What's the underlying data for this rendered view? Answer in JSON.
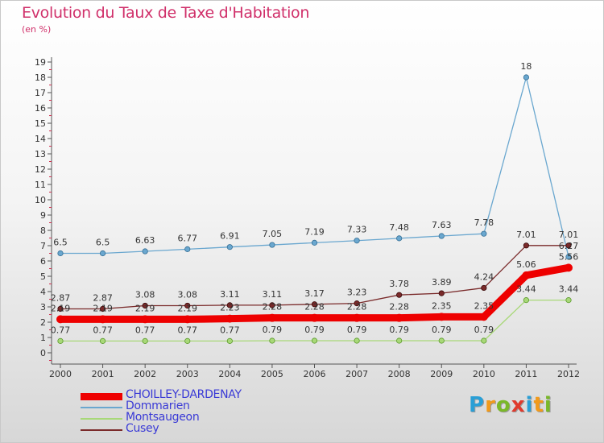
{
  "title": "Evolution du Taux de Taxe d'Habitation",
  "subtitle": "(en %)",
  "logo": {
    "letters": [
      "P",
      "r",
      "o",
      "x",
      "i",
      "t",
      "i"
    ],
    "colors": [
      "#2a9fd6",
      "#f29a1a",
      "#7ab829",
      "#e03a2d",
      "#2a9fd6",
      "#f29a1a",
      "#7ab829"
    ]
  },
  "chart_data": {
    "type": "line",
    "x": [
      "2000",
      "2001",
      "2002",
      "2003",
      "2004",
      "2005",
      "2006",
      "2007",
      "2008",
      "2009",
      "2010",
      "2011",
      "2012"
    ],
    "ylim": [
      0,
      19
    ],
    "yticks": [
      0,
      1,
      2,
      3,
      4,
      5,
      6,
      7,
      8,
      9,
      10,
      11,
      12,
      13,
      14,
      15,
      16,
      17,
      18,
      19
    ],
    "grid": false,
    "legend_position": "bottom-left",
    "series": [
      {
        "name": "CHOILLEY-DARDENAY",
        "color": "#ee0000",
        "values": [
          2.19,
          2.19,
          2.19,
          2.19,
          2.23,
          2.28,
          2.28,
          2.28,
          2.28,
          2.35,
          2.35,
          5.06,
          5.56
        ],
        "labels": [
          "2.19",
          "2.19",
          "2.19",
          "2.19",
          "2.23",
          "2.28",
          "2.28",
          "2.28",
          "2.28",
          "2.35",
          "2.35",
          "5.06",
          "5.56"
        ]
      },
      {
        "name": "Dommarien",
        "color": "#6aa7cf",
        "values": [
          6.5,
          6.5,
          6.63,
          6.77,
          6.91,
          7.05,
          7.19,
          7.33,
          7.48,
          7.63,
          7.78,
          18,
          6.27
        ],
        "labels": [
          "6.5",
          "6.5",
          "6.63",
          "6.77",
          "6.91",
          "7.05",
          "7.19",
          "7.33",
          "7.48",
          "7.63",
          "7.78",
          "18",
          "6.27"
        ]
      },
      {
        "name": "Montsaugeon",
        "color": "#a8d878",
        "values": [
          0.77,
          0.77,
          0.77,
          0.77,
          0.77,
          0.79,
          0.79,
          0.79,
          0.79,
          0.79,
          0.79,
          3.44,
          3.44
        ],
        "labels": [
          "0.77",
          "0.77",
          "0.77",
          "0.77",
          "0.77",
          "0.79",
          "0.79",
          "0.79",
          "0.79",
          "0.79",
          "0.79",
          "3.44",
          "3.44"
        ]
      },
      {
        "name": "Cusey",
        "color": "#7a2a2a",
        "values": [
          2.87,
          2.87,
          3.08,
          3.08,
          3.11,
          3.11,
          3.17,
          3.23,
          3.78,
          3.89,
          4.24,
          7.01,
          7.01
        ],
        "labels": [
          "2.87",
          "2.87",
          "3.08",
          "3.08",
          "3.11",
          "3.11",
          "3.17",
          "3.23",
          "3.78",
          "3.89",
          "4.24",
          "7.01",
          "7.01"
        ]
      }
    ]
  }
}
